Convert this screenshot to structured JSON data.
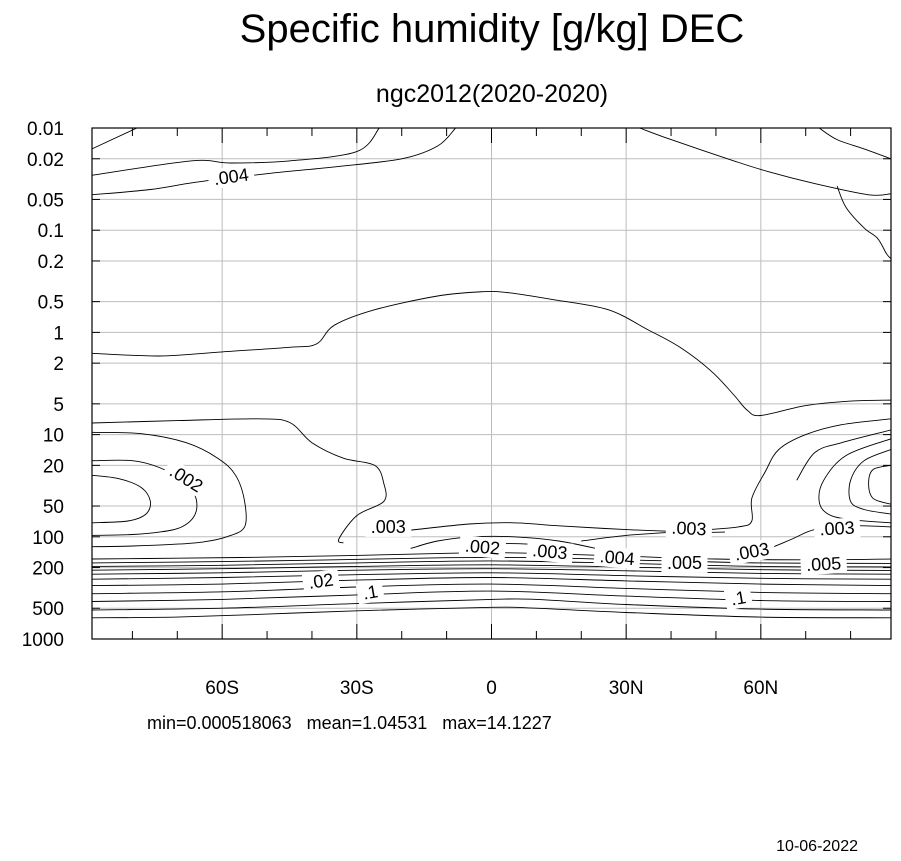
{
  "chart_data": {
    "type": "contour",
    "title": "Specific humidity [g/kg] DEC",
    "subtitle": "ngc2012(2020-2020)",
    "stats": "min=0.000518063   mean=1.04531   max=14.1227",
    "date": "10-06-2022",
    "x": {
      "ticks": [
        -60,
        -30,
        0,
        30,
        60
      ],
      "tick_labels": [
        "60S",
        "30S",
        "0",
        "30N",
        "60N"
      ],
      "minor_ticks": [
        -80,
        -70,
        -50,
        -40,
        -20,
        -10,
        10,
        20,
        40,
        50,
        70,
        80
      ],
      "range": [
        -89,
        89
      ]
    },
    "y": {
      "scale": "log",
      "reversed": true,
      "ticks": [
        0.01,
        0.02,
        0.05,
        0.1,
        0.2,
        0.5,
        1,
        2,
        5,
        10,
        20,
        50,
        100,
        200,
        500,
        1000
      ],
      "tick_labels": [
        "0.01",
        "0.02",
        "0.05",
        "0.1",
        "0.2",
        "0.5",
        "1",
        "2",
        "5",
        "10",
        "20",
        "50",
        "100",
        "200",
        "500",
        "1000"
      ],
      "range": [
        0.01,
        1000
      ]
    },
    "grid": true,
    "contours": [
      {
        "level": "upper-left",
        "pts": [
          [
            -89,
            0.016
          ],
          [
            -79,
            0.01
          ]
        ]
      },
      {
        "level": "upper-left-2",
        "pts": [
          [
            -89,
            0.029
          ],
          [
            -67,
            0.021
          ],
          [
            -58,
            0.022
          ],
          [
            -45,
            0.021
          ],
          [
            -30,
            0.017
          ],
          [
            -25,
            0.01
          ]
        ]
      },
      {
        "level": "0.004-a",
        "pts": [
          [
            -89,
            0.045
          ],
          [
            -76,
            0.04
          ],
          [
            -66,
            0.034
          ],
          [
            -50,
            0.028
          ],
          [
            -35,
            0.024
          ],
          [
            -20,
            0.02
          ],
          [
            -12,
            0.015
          ],
          [
            -8,
            0.01
          ]
        ]
      },
      {
        "level": "upper-right-a",
        "pts": [
          [
            33,
            0.01
          ],
          [
            40,
            0.013
          ],
          [
            54,
            0.021
          ],
          [
            62,
            0.027
          ],
          [
            72,
            0.035
          ],
          [
            84,
            0.045
          ],
          [
            89,
            0.044
          ]
        ]
      },
      {
        "level": "upper-right-b",
        "pts": [
          [
            73,
            0.01
          ],
          [
            77,
            0.013
          ],
          [
            83,
            0.016
          ],
          [
            89,
            0.02
          ]
        ]
      },
      {
        "level": "upper-right-c",
        "pts": [
          [
            77,
            0.037
          ],
          [
            79,
            0.06
          ],
          [
            83,
            0.095
          ],
          [
            86,
            0.12
          ],
          [
            88,
            0.17
          ],
          [
            89,
            0.19
          ]
        ]
      },
      {
        "level": "0.003-dome",
        "pts": [
          [
            -89,
            1.6
          ],
          [
            -74,
            1.7
          ],
          [
            -60,
            1.55
          ],
          [
            -45,
            1.4
          ],
          [
            -39,
            1.3
          ],
          [
            -35,
            0.85
          ],
          [
            -26,
            0.6
          ],
          [
            -12,
            0.44
          ],
          [
            -2,
            0.4
          ],
          [
            4,
            0.41
          ],
          [
            14,
            0.48
          ],
          [
            26,
            0.6
          ],
          [
            35,
            0.95
          ],
          [
            42,
            1.4
          ],
          [
            49,
            2.4
          ],
          [
            54,
            4.1
          ],
          [
            57,
            5.8
          ],
          [
            60,
            6.5
          ],
          [
            70,
            5.2
          ],
          [
            80,
            4.7
          ],
          [
            89,
            4.6
          ]
        ]
      },
      {
        "level": "0.002-left",
        "pts": [
          [
            -89,
            7.7
          ],
          [
            -70,
            7.3
          ],
          [
            -52,
            7.0
          ],
          [
            -45,
            7.6
          ],
          [
            -40,
            12
          ],
          [
            -33,
            17
          ],
          [
            -26,
            20
          ],
          [
            -24,
            30
          ],
          [
            -24,
            45
          ],
          [
            -30,
            62
          ],
          [
            -34,
            105
          ],
          [
            -33,
            115
          ]
        ]
      },
      {
        "level": "0.003-right",
        "pts": [
          [
            20,
            110
          ],
          [
            30,
            97
          ],
          [
            45,
            87
          ],
          [
            55,
            80
          ],
          [
            58,
            70
          ],
          [
            58,
            42
          ],
          [
            61,
            23
          ],
          [
            64,
            14
          ],
          [
            70,
            10
          ],
          [
            78,
            8
          ],
          [
            89,
            7
          ]
        ]
      },
      {
        "level": "0.003-right-2",
        "pts": [
          [
            62,
            130
          ],
          [
            67,
            105
          ],
          [
            72,
            85
          ],
          [
            80,
            78
          ],
          [
            89,
            80
          ]
        ]
      },
      {
        "level": "0.004-right",
        "pts": [
          [
            68,
            28
          ],
          [
            72,
            15
          ],
          [
            78,
            12
          ],
          [
            89,
            9
          ]
        ]
      },
      {
        "level": "0.005-right",
        "pts": [
          [
            89,
            73
          ],
          [
            80,
            68
          ],
          [
            75,
            60
          ],
          [
            73,
            45
          ],
          [
            74,
            28
          ],
          [
            79,
            16
          ],
          [
            89,
            11
          ]
        ]
      },
      {
        "level": "0.006-right",
        "pts": [
          [
            89,
            60
          ],
          [
            83,
            54
          ],
          [
            80,
            45
          ],
          [
            80,
            28
          ],
          [
            83,
            18
          ],
          [
            89,
            14
          ]
        ]
      },
      {
        "level": "0.007-right",
        "pts": [
          [
            89,
            48
          ],
          [
            85,
            42
          ],
          [
            84,
            30
          ],
          [
            85,
            22
          ],
          [
            89,
            20
          ]
        ]
      },
      {
        "level": "left-loop-1",
        "pts": [
          [
            -89,
            9.5
          ],
          [
            -78,
            9.8
          ],
          [
            -68,
            12
          ],
          [
            -61,
            17
          ],
          [
            -57,
            25
          ],
          [
            -55,
            45
          ],
          [
            -55,
            80
          ],
          [
            -59,
            100
          ],
          [
            -64,
            112
          ],
          [
            -70,
            118
          ],
          [
            -80,
            123
          ],
          [
            -89,
            125
          ]
        ]
      },
      {
        "level": "left-loop-2",
        "pts": [
          [
            -89,
            18
          ],
          [
            -80,
            18
          ],
          [
            -74,
            21
          ],
          [
            -69,
            28
          ],
          [
            -66,
            40
          ],
          [
            -66,
            60
          ],
          [
            -69,
            80
          ],
          [
            -74,
            90
          ],
          [
            -80,
            95
          ],
          [
            -89,
            97
          ]
        ]
      },
      {
        "level": "left-loop-3",
        "pts": [
          [
            -89,
            25
          ],
          [
            -83,
            27
          ],
          [
            -78,
            33
          ],
          [
            -76,
            45
          ],
          [
            -77,
            60
          ],
          [
            -81,
            70
          ],
          [
            -89,
            73
          ]
        ]
      },
      {
        "level": "0.003-eq",
        "pts": [
          [
            -28,
            95
          ],
          [
            -20,
            88
          ],
          [
            -5,
            75
          ],
          [
            5,
            73
          ],
          [
            15,
            78
          ],
          [
            30,
            85
          ],
          [
            45,
            90
          ],
          [
            52,
            90
          ]
        ]
      },
      {
        "level": "0.002-eq",
        "pts": [
          [
            -18,
            130
          ],
          [
            -12,
            110
          ],
          [
            -4,
            100
          ],
          [
            5,
            100
          ],
          [
            15,
            110
          ],
          [
            25,
            135
          ],
          [
            27,
            140
          ]
        ]
      },
      {
        "level": "0.002-eq-2",
        "pts": [
          [
            -7,
            130
          ],
          [
            0,
            118
          ],
          [
            8,
            118
          ],
          [
            14,
            130
          ]
        ]
      },
      {
        "level": "t1",
        "pts": [
          [
            -89,
            165
          ],
          [
            -70,
            162
          ],
          [
            -50,
            158
          ],
          [
            -30,
            152
          ],
          [
            -10,
            145
          ],
          [
            0,
            143
          ],
          [
            10,
            145
          ],
          [
            30,
            155
          ],
          [
            50,
            165
          ],
          [
            70,
            168
          ],
          [
            89,
            165
          ]
        ]
      },
      {
        "level": "t2",
        "pts": [
          [
            -89,
            180
          ],
          [
            -60,
            175
          ],
          [
            -35,
            168
          ],
          [
            -10,
            160
          ],
          [
            10,
            160
          ],
          [
            35,
            170
          ],
          [
            60,
            180
          ],
          [
            89,
            182
          ]
        ]
      },
      {
        "level": "t3",
        "pts": [
          [
            -89,
            195
          ],
          [
            -60,
            190
          ],
          [
            -30,
            180
          ],
          [
            0,
            172
          ],
          [
            30,
            182
          ],
          [
            60,
            195
          ],
          [
            89,
            197
          ]
        ]
      },
      {
        "level": "t4",
        "pts": [
          [
            -89,
            212
          ],
          [
            -60,
            205
          ],
          [
            -30,
            195
          ],
          [
            0,
            188
          ],
          [
            30,
            198
          ],
          [
            60,
            210
          ],
          [
            89,
            213
          ]
        ]
      },
      {
        "level": "t5",
        "pts": [
          [
            -89,
            232
          ],
          [
            -60,
            225
          ],
          [
            -30,
            212
          ],
          [
            0,
            205
          ],
          [
            30,
            215
          ],
          [
            60,
            228
          ],
          [
            89,
            232
          ]
        ]
      },
      {
        "level": "0.01",
        "pts": [
          [
            -89,
            260
          ],
          [
            -60,
            250
          ],
          [
            -30,
            235
          ],
          [
            0,
            225
          ],
          [
            30,
            240
          ],
          [
            60,
            255
          ],
          [
            89,
            260
          ]
        ]
      },
      {
        "level": "0.02",
        "pts": [
          [
            -89,
            300
          ],
          [
            -60,
            290
          ],
          [
            -30,
            265
          ],
          [
            0,
            250
          ],
          [
            30,
            270
          ],
          [
            60,
            290
          ],
          [
            89,
            300
          ]
        ]
      },
      {
        "level": "0.05",
        "pts": [
          [
            -89,
            360
          ],
          [
            -60,
            345
          ],
          [
            -30,
            310
          ],
          [
            0,
            290
          ],
          [
            30,
            320
          ],
          [
            60,
            350
          ],
          [
            89,
            360
          ]
        ]
      },
      {
        "level": "0.1",
        "pts": [
          [
            -89,
            430
          ],
          [
            -60,
            410
          ],
          [
            -30,
            370
          ],
          [
            0,
            340
          ],
          [
            30,
            380
          ],
          [
            60,
            420
          ],
          [
            89,
            430
          ]
        ]
      },
      {
        "level": "0.2",
        "pts": [
          [
            -89,
            520
          ],
          [
            -60,
            500
          ],
          [
            -30,
            450
          ],
          [
            0,
            410
          ],
          [
            10,
            410
          ],
          [
            30,
            460
          ],
          [
            60,
            510
          ],
          [
            89,
            520
          ]
        ]
      },
      {
        "level": "0.5",
        "pts": [
          [
            -89,
            620
          ],
          [
            -70,
            610
          ],
          [
            -50,
            570
          ],
          [
            -30,
            530
          ],
          [
            0,
            490
          ],
          [
            10,
            500
          ],
          [
            30,
            550
          ],
          [
            60,
            610
          ],
          [
            89,
            620
          ]
        ]
      }
    ],
    "contour_labels": [
      {
        "text": ".004",
        "x": -58,
        "y": 0.03,
        "angle": -8
      },
      {
        "text": ".002",
        "x": -68,
        "y": 27,
        "angle": 32
      },
      {
        "text": ".003",
        "x": -23,
        "y": 80,
        "angle": 0
      },
      {
        "text": ".003",
        "x": 44,
        "y": 83,
        "angle": 3
      },
      {
        "text": ".003",
        "x": 77,
        "y": 83,
        "angle": -3
      },
      {
        "text": ".002",
        "x": -2,
        "y": 126,
        "angle": 5
      },
      {
        "text": ".003",
        "x": 13,
        "y": 140,
        "angle": 5
      },
      {
        "text": ".004",
        "x": 28,
        "y": 160,
        "angle": 5
      },
      {
        "text": ".005",
        "x": 43,
        "y": 180,
        "angle": 0
      },
      {
        "text": ".003",
        "x": 58,
        "y": 140,
        "angle": -10
      },
      {
        "text": ".005",
        "x": 74,
        "y": 185,
        "angle": -3
      },
      {
        "text": ".02",
        "x": -38,
        "y": 272,
        "angle": -8
      },
      {
        "text": ".1",
        "x": -27,
        "y": 350,
        "angle": -10
      },
      {
        "text": ".1",
        "x": 55,
        "y": 400,
        "angle": -10
      }
    ]
  }
}
